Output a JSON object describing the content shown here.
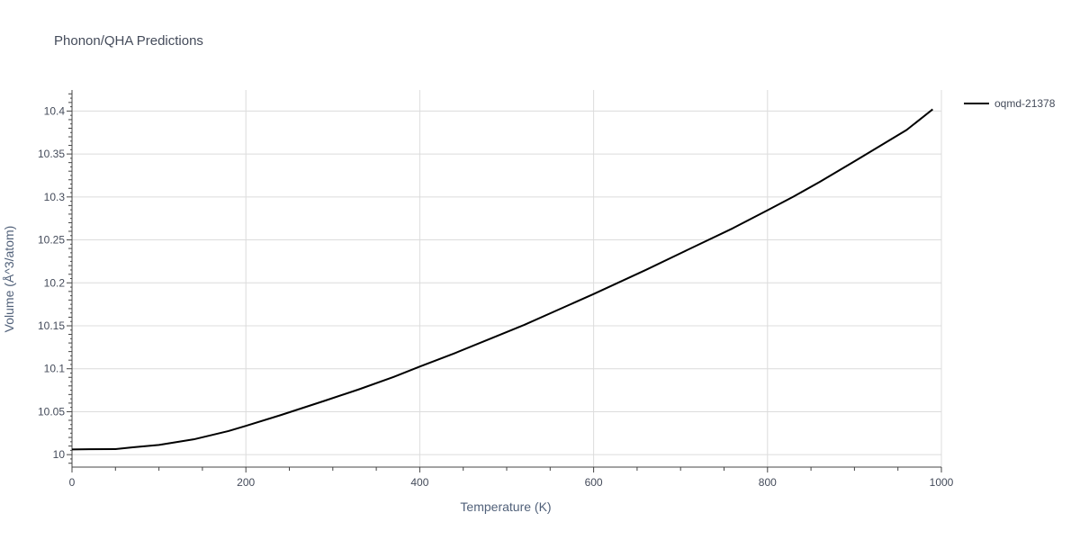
{
  "chart_data": {
    "type": "line",
    "title": "Phonon/QHA Predictions",
    "xlabel": "Temperature (K)",
    "ylabel": "Volume (Å^3/atom)",
    "xlim": [
      0,
      1000
    ],
    "ylim": [
      9.9855,
      10.4245
    ],
    "x_ticks": [
      0,
      200,
      400,
      600,
      800,
      1000
    ],
    "y_ticks": [
      10,
      10.05,
      10.1,
      10.15,
      10.2,
      10.25,
      10.3,
      10.35,
      10.4
    ],
    "x_tick_labels": [
      "0",
      "200",
      "400",
      "600",
      "800",
      "1000"
    ],
    "y_tick_labels": [
      "10",
      "10.05",
      "10.1",
      "10.15",
      "10.2",
      "10.25",
      "10.3",
      "10.35",
      "10.4"
    ],
    "grid": true,
    "legend_position": "top-right",
    "series": [
      {
        "name": "oqmd-21378",
        "color": "#000000",
        "x": [
          0,
          20,
          50,
          70,
          100,
          140,
          180,
          200,
          240,
          290,
          330,
          370,
          400,
          440,
          480,
          520,
          560,
          600,
          660,
          700,
          760,
          800,
          830,
          860,
          900,
          960,
          990
        ],
        "y": [
          10.006,
          10.0063,
          10.0065,
          10.0085,
          10.0113,
          10.0178,
          10.0275,
          10.0335,
          10.046,
          10.0625,
          10.076,
          10.0905,
          10.1025,
          10.118,
          10.1345,
          10.151,
          10.169,
          10.187,
          10.215,
          10.2345,
          10.2635,
          10.2845,
          10.3005,
          10.3175,
          10.3415,
          10.378,
          10.402
        ]
      }
    ]
  }
}
